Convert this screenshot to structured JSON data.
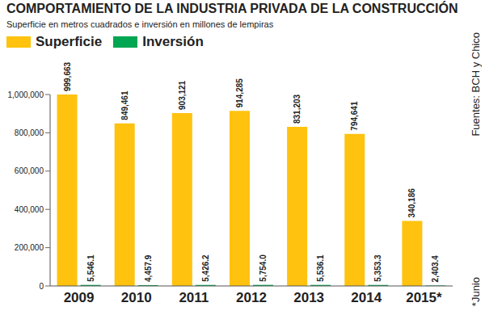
{
  "chart_data": {
    "type": "bar",
    "title": "COMPORTAMIENTO DE LA INDUSTRIA PRIVADA DE LA CONSTRUCCIÓN",
    "subtitle": "Superficie en metros cuadrados e inversión en millones de lempiras",
    "categories": [
      "2009",
      "2010",
      "2011",
      "2012",
      "2013",
      "2014",
      "2015*"
    ],
    "series": [
      {
        "name": "Superficie",
        "color": "#FFC20E",
        "values": [
          999663,
          849461,
          903121,
          914285,
          831203,
          794641,
          340186
        ],
        "value_labels": [
          "999,663",
          "849,461",
          "903,121",
          "914,285",
          "831,203",
          "794,641",
          "340,186"
        ]
      },
      {
        "name": "Inversión",
        "color": "#00A651",
        "values": [
          5546.1,
          4457.9,
          5426.2,
          5754.0,
          5536.1,
          5353.3,
          2403.4
        ],
        "value_labels": [
          "5,546.1",
          "4,457.9",
          "5,426.2",
          "5,754.0",
          "5,536.1",
          "5,353.3",
          "2,403.4"
        ]
      }
    ],
    "ylim": [
      0,
      1000000
    ],
    "yticks": [
      0,
      {
        "value": 200000,
        "label": "200,000"
      },
      {
        "value": 400000,
        "label": "400,000"
      },
      {
        "value": 600000,
        "label": "600,000"
      },
      {
        "value": 800000,
        "label": "800,000"
      },
      {
        "value": 1000000,
        "label": "1,000,000"
      }
    ],
    "grid": false,
    "legend": "top-left",
    "data_labels": true,
    "annotations": [
      "Fuentes: BCH y Chico",
      "*Junio"
    ]
  }
}
